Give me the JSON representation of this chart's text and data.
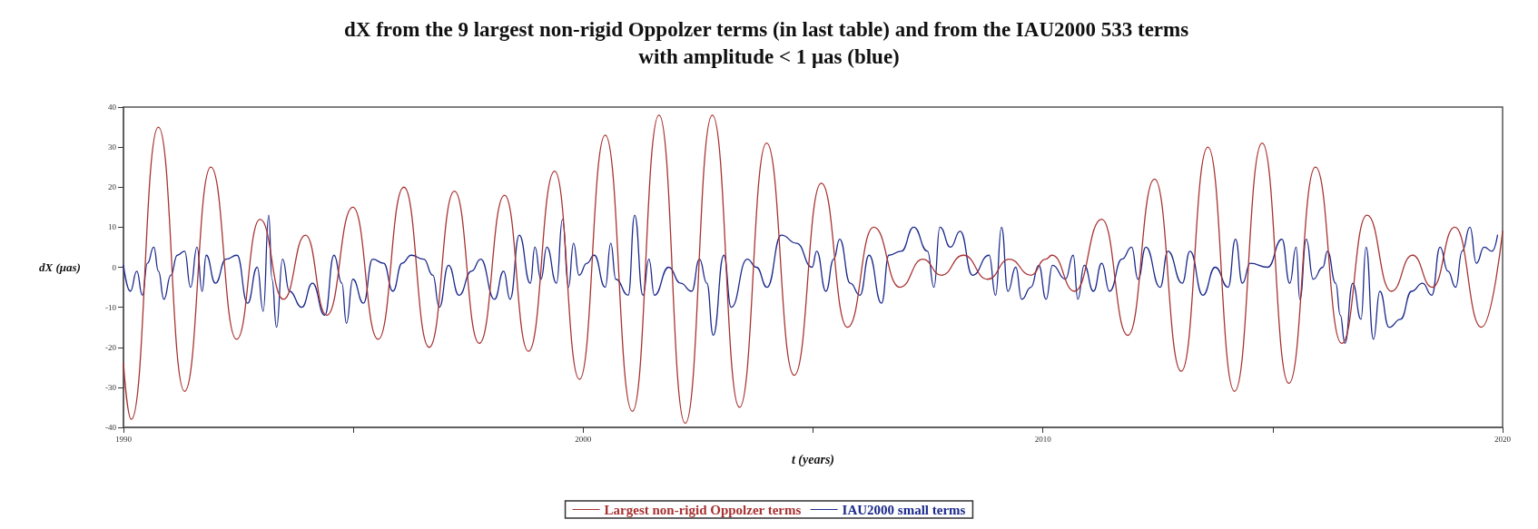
{
  "chart_data": {
    "type": "line",
    "title": "dX from the 9 largest non-rigid Oppolzer terms (in last table) and from the IAU2000 533 terms with amplitude < 1 μas (blue)",
    "xlabel": "t (years)",
    "ylabel": "dX (μas)",
    "xlim": [
      1990,
      2020
    ],
    "xticks": [
      1990,
      {
        "value": 1995,
        "label": null
      },
      2000,
      {
        "value": 2005,
        "label": null
      },
      2010,
      {
        "value": 2015,
        "label": null
      },
      2020
    ],
    "ylim": [
      -40,
      40
    ],
    "yticks": [
      -40,
      -30,
      -20,
      -10,
      0,
      10,
      20,
      30,
      40
    ],
    "grid": false,
    "legend": "bottom",
    "marker": "none",
    "line_style": "solid",
    "series": [
      {
        "name": "Largest non-rigid Oppolzer terms",
        "color": "#a83232",
        "x": [
          1990.0,
          1990.17,
          1990.76,
          1991.33,
          1991.9,
          1992.46,
          1992.97,
          1993.48,
          1993.96,
          1994.42,
          1994.99,
          1995.54,
          1996.1,
          1996.65,
          1997.2,
          1997.74,
          1998.29,
          1998.81,
          1999.38,
          1999.92,
          2000.48,
          2001.07,
          2001.65,
          2002.22,
          2002.81,
          2003.4,
          2003.99,
          2004.59,
          2005.18,
          2005.75,
          2006.32,
          2006.89,
          2007.39,
          2007.79,
          2008.27,
          2008.8,
          2009.27,
          2009.74,
          2010.06,
          2010.2,
          2010.69,
          2011.28,
          2011.85,
          2012.43,
          2013.01,
          2013.59,
          2014.17,
          2014.77,
          2015.35,
          2015.93,
          2016.5,
          2017.05,
          2017.58,
          2018.04,
          2018.47,
          2018.96,
          2019.54,
          2020.0
        ],
        "values": [
          -24,
          -38,
          35,
          -31,
          25,
          -18,
          12,
          -8,
          8,
          -12,
          15,
          -18,
          20,
          -20,
          19,
          -19,
          18,
          -21,
          24,
          -28,
          33,
          -36,
          38,
          -39,
          38,
          -35,
          31,
          -27,
          21,
          -15,
          10,
          -5,
          2,
          -2,
          3,
          -3,
          2,
          -2,
          2,
          3,
          -6,
          12,
          -17,
          22,
          -26,
          30,
          -31,
          31,
          -29,
          25,
          -19,
          13,
          -6,
          3,
          -5,
          10,
          -15,
          9
        ]
      },
      {
        "name": "IAU2000 small terms",
        "color": "#1c2a8c",
        "x": [
          1990.0,
          1990.15,
          1990.29,
          1990.41,
          1990.52,
          1990.66,
          1990.76,
          1990.88,
          1991.03,
          1991.17,
          1991.33,
          1991.46,
          1991.6,
          1991.71,
          1991.8,
          1992.0,
          1992.23,
          1992.47,
          1992.7,
          1992.91,
          1993.04,
          1993.16,
          1993.23,
          1993.33,
          1993.46,
          1993.61,
          1993.88,
          1994.11,
          1994.38,
          1994.58,
          1994.75,
          1994.85,
          1994.99,
          1995.22,
          1995.42,
          1995.66,
          1995.86,
          1996.06,
          1996.26,
          1996.53,
          1996.73,
          1996.87,
          1997.07,
          1997.3,
          1997.57,
          1997.77,
          1998.07,
          1998.27,
          1998.41,
          1998.61,
          1998.85,
          1998.95,
          1999.08,
          1999.21,
          1999.42,
          1999.55,
          1999.68,
          1999.79,
          1999.91,
          2000.08,
          2000.24,
          2000.48,
          2000.6,
          2000.71,
          2000.98,
          2001.12,
          2001.3,
          2001.43,
          2001.55,
          2001.86,
          2002.12,
          2002.36,
          2002.53,
          2002.69,
          2002.83,
          2003.06,
          2003.22,
          2003.57,
          2003.77,
          2004.0,
          2004.31,
          2004.64,
          2004.98,
          2005.08,
          2005.28,
          2005.45,
          2005.58,
          2005.81,
          2006.02,
          2006.22,
          2006.49,
          2006.65,
          2006.92,
          2007.19,
          2007.49,
          2007.63,
          2007.76,
          2007.99,
          2008.2,
          2008.47,
          2008.83,
          2008.97,
          2009.1,
          2009.24,
          2009.41,
          2009.54,
          2009.74,
          2009.91,
          2010.07,
          2010.21,
          2010.49,
          2010.66,
          2010.76,
          2010.9,
          2011.1,
          2011.28,
          2011.45,
          2011.72,
          2011.93,
          2012.07,
          2012.24,
          2012.55,
          2012.72,
          2013.03,
          2013.2,
          2013.48,
          2013.75,
          2014.03,
          2014.19,
          2014.34,
          2014.51,
          2014.89,
          2015.2,
          2015.37,
          2015.51,
          2015.59,
          2015.73,
          2015.88,
          2016.09,
          2016.19,
          2016.37,
          2016.47,
          2016.57,
          2016.74,
          2016.92,
          2017.03,
          2017.19,
          2017.33,
          2017.53,
          2017.78,
          2018.02,
          2018.26,
          2018.46,
          2018.64,
          2018.81,
          2018.98,
          2019.12,
          2019.29,
          2019.43,
          2019.6,
          2019.77,
          2019.89
        ],
        "values": [
          0.5,
          -6,
          -1,
          -7,
          1,
          5,
          -1,
          -8,
          -2,
          3,
          4,
          -5,
          5,
          -6,
          3,
          -4,
          2,
          3,
          -9,
          0,
          -11,
          13,
          -3,
          -15,
          2,
          -6,
          -10,
          -4,
          -12,
          3,
          -4,
          -14,
          -3,
          -9,
          2,
          1,
          -6,
          1,
          3,
          2,
          -2,
          -10,
          0.5,
          -7,
          -1,
          2,
          -8,
          -1,
          -8,
          8,
          -4,
          5,
          -3,
          5,
          -4,
          12,
          -5,
          6,
          -2,
          1,
          3,
          -5,
          6,
          -3,
          -7,
          13,
          -7,
          2,
          -7,
          0,
          -4,
          -6,
          2,
          -4,
          -17,
          3,
          -10,
          2,
          0,
          -5,
          8,
          6,
          0,
          4,
          -6,
          2,
          7,
          -4,
          -7,
          3,
          -9,
          3,
          4,
          10,
          4,
          -5,
          10,
          5,
          9,
          -2,
          3,
          -7,
          10,
          -6,
          0,
          -8,
          -5,
          0.5,
          -8,
          0.5,
          -3,
          3,
          -8,
          0.5,
          -6,
          1,
          -6,
          2,
          5,
          -3,
          5,
          -5,
          4,
          -4,
          4,
          -7,
          0,
          -5,
          7,
          -4,
          1,
          0,
          7,
          -4,
          5,
          -8,
          7,
          -3,
          0,
          4,
          -4,
          -12,
          -19,
          -4,
          -13,
          5,
          -18,
          -6,
          -15,
          -13,
          -6,
          -4,
          -7,
          5,
          -1,
          -5,
          4,
          10,
          1,
          5,
          4,
          8
        ]
      }
    ]
  }
}
